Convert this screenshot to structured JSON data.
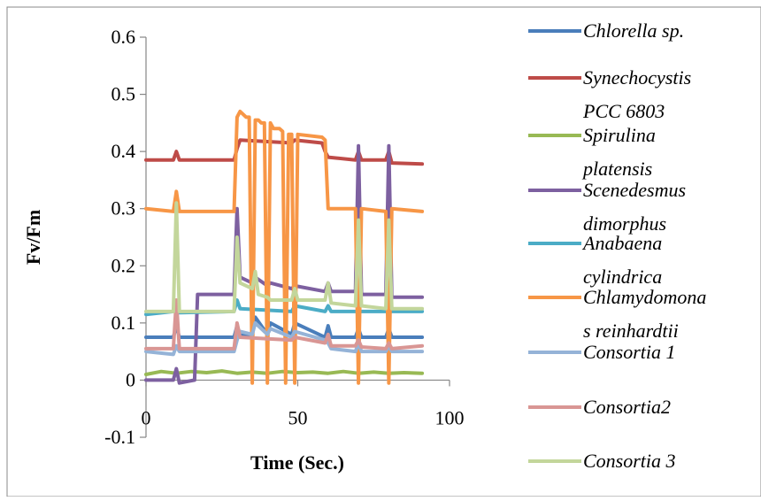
{
  "chart_data": {
    "type": "line",
    "title": "",
    "xlabel": "Time (Sec.)",
    "ylabel": "Fv/Fm",
    "xlim": [
      0,
      100
    ],
    "ylim": [
      -0.1,
      0.6
    ],
    "x_ticks": [
      0,
      50,
      100
    ],
    "y_ticks": [
      -0.1,
      0,
      0.1,
      0.2,
      0.3,
      0.4,
      0.5,
      0.6
    ],
    "grid": false,
    "legend_position": "right",
    "series": [
      {
        "name": "Chlorella sp.",
        "name_lines": [
          "Chlorella sp."
        ],
        "italic_lines": [
          true
        ],
        "color": "#4a7ebb",
        "x": [
          0,
          9,
          10,
          11,
          17,
          29,
          30,
          31,
          35,
          36,
          40,
          41,
          48,
          49,
          59,
          60,
          61,
          69,
          70,
          71,
          79,
          80,
          81,
          91
        ],
        "y": [
          0.075,
          0.075,
          0.095,
          0.075,
          0.075,
          0.075,
          0.095,
          0.08,
          0.08,
          0.11,
          0.08,
          0.1,
          0.08,
          0.1,
          0.075,
          0.095,
          0.075,
          0.075,
          0.09,
          0.075,
          0.075,
          0.09,
          0.075,
          0.075
        ]
      },
      {
        "name": "Synechocystis PCC 6803",
        "name_lines": [
          "Synechocystis",
          "PCC 6803"
        ],
        "italic_lines": [
          true,
          true
        ],
        "color": "#be4b48",
        "x": [
          0,
          9,
          10,
          11,
          29,
          30,
          31,
          48,
          49,
          58,
          59,
          60,
          69,
          70,
          71,
          79,
          80,
          81,
          91
        ],
        "y": [
          0.385,
          0.385,
          0.4,
          0.385,
          0.385,
          0.405,
          0.42,
          0.415,
          0.42,
          0.415,
          0.4,
          0.39,
          0.385,
          0.4,
          0.385,
          0.385,
          0.4,
          0.38,
          0.378
        ]
      },
      {
        "name": "Spirulina platensis",
        "name_lines": [
          "Spirulina",
          "platensis"
        ],
        "italic_lines": [
          true,
          true
        ],
        "color": "#98b954",
        "x": [
          0,
          5,
          10,
          15,
          20,
          25,
          30,
          35,
          40,
          45,
          50,
          55,
          60,
          65,
          70,
          75,
          80,
          85,
          91
        ],
        "y": [
          0.01,
          0.015,
          0.012,
          0.015,
          0.013,
          0.016,
          0.012,
          0.014,
          0.012,
          0.015,
          0.013,
          0.014,
          0.012,
          0.015,
          0.012,
          0.014,
          0.012,
          0.013,
          0.012
        ]
      },
      {
        "name": "Scenedesmus dimorphus",
        "name_lines": [
          "Scenedesmus",
          "dimorphus"
        ],
        "italic_lines": [
          true,
          true
        ],
        "color": "#7d60a0",
        "x": [
          0,
          9,
          10,
          11,
          16,
          17,
          29,
          30,
          31,
          35,
          36,
          40,
          41,
          48,
          49,
          59,
          60,
          61,
          69,
          70,
          71,
          79,
          80,
          81,
          91
        ],
        "y": [
          0.0,
          0.0,
          0.02,
          -0.005,
          0.0,
          0.15,
          0.15,
          0.3,
          0.18,
          0.17,
          0.18,
          0.165,
          0.17,
          0.16,
          0.165,
          0.155,
          0.17,
          0.155,
          0.155,
          0.41,
          0.15,
          0.15,
          0.41,
          0.145,
          0.145
        ]
      },
      {
        "name": "Anabaena cylindrica",
        "name_lines": [
          "Anabaena",
          "cylindrica"
        ],
        "italic_lines": [
          true,
          true
        ],
        "color": "#4bacc6",
        "x": [
          0,
          9,
          10,
          11,
          29,
          30,
          31,
          48,
          49,
          59,
          60,
          61,
          80,
          91
        ],
        "y": [
          0.115,
          0.12,
          0.13,
          0.118,
          0.12,
          0.14,
          0.125,
          0.12,
          0.13,
          0.12,
          0.13,
          0.12,
          0.12,
          0.12
        ]
      },
      {
        "name": "Chlamydomonas reinhardtii",
        "name_lines": [
          "Chlamydomona",
          "s reinhardtii"
        ],
        "italic_lines": [
          true,
          true
        ],
        "color": "#f79646",
        "x": [
          0,
          9,
          10,
          11,
          16,
          29,
          30,
          31,
          32,
          33,
          34,
          35,
          36,
          37,
          38,
          39,
          40,
          41,
          42,
          43,
          44,
          45,
          46,
          47,
          48,
          49,
          50,
          58,
          59,
          60,
          61,
          69,
          70,
          71,
          79,
          80,
          81,
          91
        ],
        "y": [
          0.3,
          0.295,
          0.33,
          0.295,
          0.295,
          0.295,
          0.46,
          0.47,
          0.465,
          0.46,
          0.46,
          -0.005,
          0.455,
          0.455,
          0.45,
          0.45,
          -0.005,
          0.45,
          0.44,
          0.44,
          0.44,
          0.435,
          -0.005,
          0.43,
          0.43,
          -0.005,
          0.43,
          0.425,
          0.42,
          0.3,
          0.3,
          0.3,
          -0.005,
          0.3,
          0.295,
          -0.005,
          0.3,
          0.295
        ]
      },
      {
        "name": "Consortia 1",
        "name_lines": [
          "Consortia 1"
        ],
        "italic_lines": [
          true
        ],
        "color": "#95b3d7",
        "x": [
          0,
          9,
          10,
          11,
          29,
          30,
          31,
          35,
          36,
          40,
          41,
          48,
          49,
          59,
          60,
          61,
          69,
          70,
          71,
          79,
          80,
          81,
          91
        ],
        "y": [
          0.05,
          0.045,
          0.06,
          0.05,
          0.05,
          0.07,
          0.085,
          0.08,
          0.1,
          0.08,
          0.09,
          0.075,
          0.085,
          0.07,
          0.065,
          0.055,
          0.05,
          0.065,
          0.05,
          0.05,
          0.06,
          0.05,
          0.05
        ]
      },
      {
        "name": "Consortia2",
        "name_lines": [
          "Consortia2"
        ],
        "italic_lines": [
          true
        ],
        "color": "#d99694",
        "x": [
          0,
          9,
          10,
          11,
          29,
          30,
          31,
          48,
          49,
          59,
          60,
          61,
          69,
          70,
          71,
          79,
          80,
          81,
          91
        ],
        "y": [
          0.055,
          0.055,
          0.14,
          0.055,
          0.055,
          0.1,
          0.075,
          0.07,
          0.075,
          0.065,
          0.08,
          0.06,
          0.06,
          0.07,
          0.058,
          0.055,
          0.065,
          0.055,
          0.06
        ]
      },
      {
        "name": "Consortia 3",
        "name_lines": [
          "Consortia 3"
        ],
        "italic_lines": [
          true
        ],
        "color": "#c3d69b",
        "x": [
          0,
          9,
          10,
          11,
          29,
          30,
          31,
          35,
          36,
          37,
          40,
          41,
          48,
          49,
          50,
          59,
          60,
          61,
          69,
          70,
          71,
          79,
          80,
          81,
          91
        ],
        "y": [
          0.12,
          0.12,
          0.31,
          0.12,
          0.12,
          0.25,
          0.17,
          0.16,
          0.19,
          0.15,
          0.145,
          0.14,
          0.14,
          0.16,
          0.14,
          0.14,
          0.17,
          0.135,
          0.13,
          0.28,
          0.13,
          0.125,
          0.28,
          0.125,
          0.125
        ]
      }
    ]
  }
}
